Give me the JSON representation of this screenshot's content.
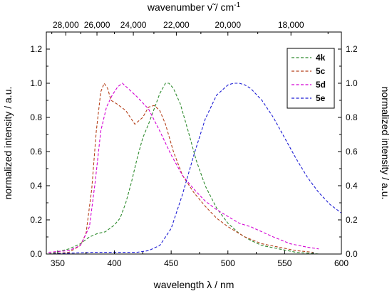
{
  "chart_data": {
    "type": "line",
    "xlabel": "wavelength λ / nm",
    "ylabel_left": "normalized intensity / a.u.",
    "ylabel_right": "normalized intensity / a.u.",
    "x2label_main": "wavenumber ",
    "x2label_symbol": "ν̃",
    "x2label_unit": " / cm",
    "x2label_exp": "-1",
    "xlim": [
      340,
      600
    ],
    "ylim": [
      0,
      1.3
    ],
    "x_ticks": [
      350,
      400,
      450,
      500,
      550,
      600
    ],
    "y_ticks": [
      0.0,
      0.2,
      0.4,
      0.6,
      0.8,
      1.0,
      1.2
    ],
    "y_tick_labels": [
      "0.0",
      "0.2",
      "0.4",
      "0.6",
      "0.8",
      "1.0",
      "1.2"
    ],
    "top_ticks": [
      28000,
      26000,
      24000,
      22000,
      20000,
      18000
    ],
    "top_tick_labels": [
      "28,000",
      "26,000",
      "24,000",
      "22,000",
      "20,000",
      "18,000"
    ],
    "legend_position": "top-right",
    "series": [
      {
        "name": "4k",
        "color": "#2e8b2e",
        "x": [
          342,
          360,
          370,
          378,
          385,
          392,
          400,
          405,
          410,
          415,
          420,
          425,
          430,
          435,
          440,
          445,
          448,
          452,
          458,
          465,
          472,
          480,
          490,
          500,
          510,
          520,
          530,
          545,
          560,
          580
        ],
        "y": [
          0.0,
          0.03,
          0.06,
          0.1,
          0.12,
          0.13,
          0.17,
          0.21,
          0.3,
          0.42,
          0.56,
          0.68,
          0.76,
          0.85,
          0.94,
          1.0,
          1.0,
          0.97,
          0.88,
          0.72,
          0.55,
          0.4,
          0.27,
          0.18,
          0.12,
          0.08,
          0.05,
          0.03,
          0.01,
          0.0
        ]
      },
      {
        "name": "5c",
        "color": "#b5401a",
        "x": [
          342,
          360,
          370,
          375,
          380,
          384,
          388,
          391,
          394,
          397,
          402,
          410,
          418,
          425,
          430,
          435,
          440,
          445,
          452,
          460,
          470,
          480,
          490,
          500,
          515,
          530,
          545,
          560,
          575
        ],
        "y": [
          0.0,
          0.01,
          0.05,
          0.12,
          0.38,
          0.72,
          0.95,
          1.0,
          0.97,
          0.9,
          0.88,
          0.84,
          0.76,
          0.8,
          0.86,
          0.87,
          0.84,
          0.76,
          0.6,
          0.46,
          0.36,
          0.28,
          0.21,
          0.16,
          0.1,
          0.06,
          0.04,
          0.02,
          0.01
        ]
      },
      {
        "name": "5d",
        "color": "#d400d4",
        "x": [
          342,
          360,
          370,
          378,
          383,
          388,
          393,
          398,
          403,
          407,
          412,
          420,
          430,
          440,
          450,
          460,
          470,
          480,
          490,
          500,
          510,
          520,
          530,
          540,
          555,
          570,
          580
        ],
        "y": [
          0.01,
          0.02,
          0.05,
          0.16,
          0.42,
          0.72,
          0.86,
          0.93,
          0.98,
          1.0,
          0.97,
          0.92,
          0.85,
          0.72,
          0.58,
          0.46,
          0.38,
          0.31,
          0.26,
          0.22,
          0.18,
          0.16,
          0.13,
          0.1,
          0.06,
          0.04,
          0.03
        ]
      },
      {
        "name": "5e",
        "color": "#1c1cd4",
        "x": [
          342,
          380,
          420,
          430,
          440,
          450,
          460,
          470,
          480,
          490,
          500,
          505,
          510,
          515,
          520,
          530,
          540,
          550,
          560,
          570,
          580,
          590,
          600
        ],
        "y": [
          0.0,
          0.01,
          0.01,
          0.02,
          0.05,
          0.15,
          0.35,
          0.58,
          0.79,
          0.93,
          0.99,
          1.0,
          1.0,
          0.99,
          0.97,
          0.9,
          0.8,
          0.68,
          0.56,
          0.45,
          0.36,
          0.29,
          0.24
        ]
      }
    ]
  }
}
